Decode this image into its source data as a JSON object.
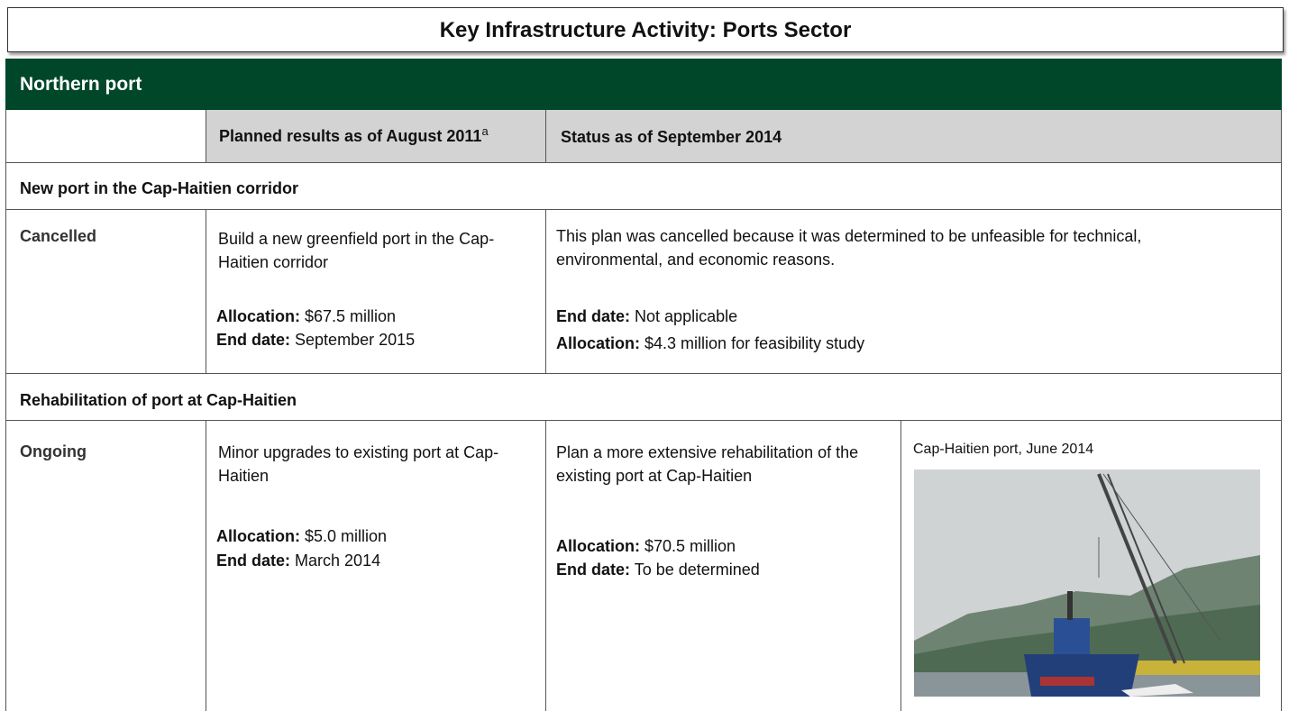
{
  "title": "Key Infrastructure Activity: Ports Sector",
  "section": "Northern port",
  "header": {
    "planned": "Planned results as of August  2011",
    "planned_note": "a",
    "status": "Status as of  September 2014"
  },
  "projects": [
    {
      "name": "New port in the Cap-Haitien corridor",
      "status": "Cancelled",
      "planned": {
        "text": "Build a new greenfield port in the Cap-Haitien corridor",
        "allocation_label": "Allocation:",
        "allocation": "$67.5 million",
        "end_label": "End date:",
        "end": "September 2015"
      },
      "current": {
        "text": "This plan was cancelled because it was determined to be unfeasible for technical, environmental, and economic reasons.",
        "end_label": "End date:",
        "end": "Not applicable",
        "allocation_label": "Allocation:",
        "allocation": "$4.3 million for feasibility study"
      }
    },
    {
      "name": "Rehabilitation of port at Cap-Haitien",
      "status": "Ongoing",
      "planned": {
        "text": "Minor upgrades to existing port at Cap-Haitien",
        "allocation_label": "Allocation:",
        "allocation": "$5.0 million",
        "end_label": "End date:",
        "end": "March 2014"
      },
      "current": {
        "text": "Plan a more extensive rehabilitation of the existing port at Cap-Haitien",
        "allocation_label": "Allocation:",
        "allocation": "$70.5 million",
        "end_label": "End date:",
        "end": "To be determined"
      },
      "photo_caption": "Cap-Haitien port, June 2014"
    }
  ]
}
